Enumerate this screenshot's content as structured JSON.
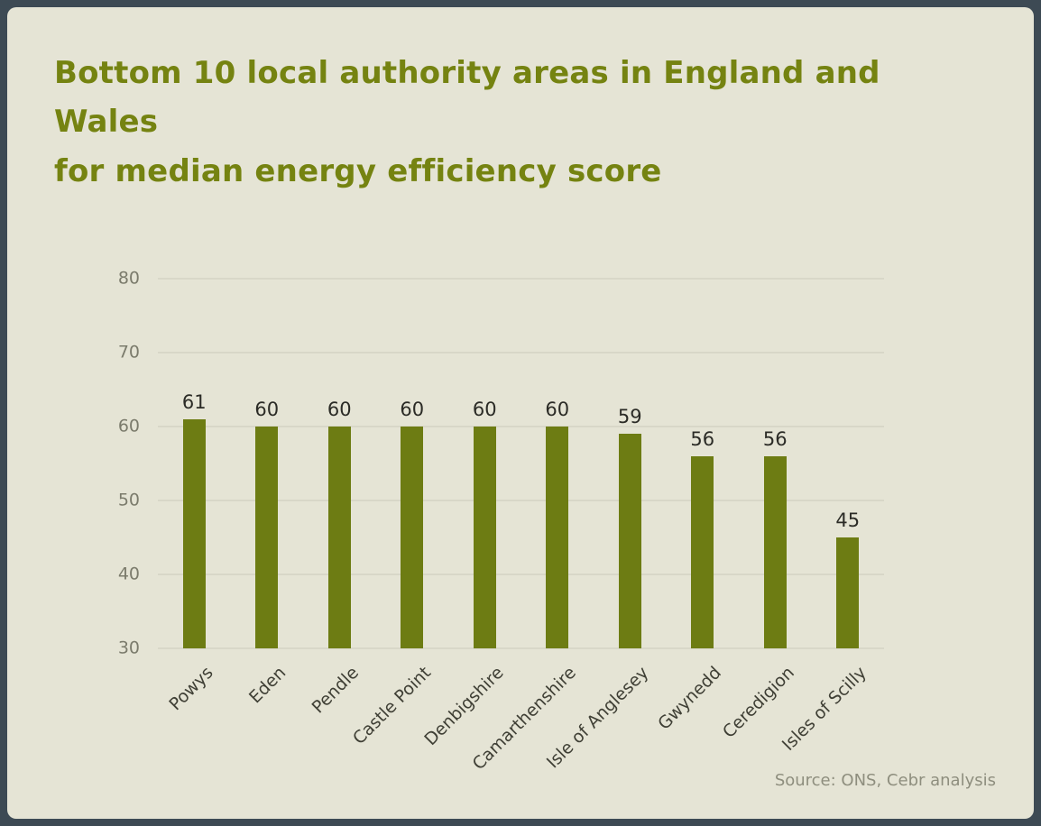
{
  "chart_data": {
    "type": "bar",
    "title": "Bottom 10 local authority areas in England and Wales for median energy efficiency score",
    "title_lines": [
      "Bottom 10 local authority areas in England and Wales",
      "for median energy efficiency score"
    ],
    "categories": [
      "Powys",
      "Eden",
      "Pendle",
      "Castle Point",
      "Denbigshire",
      "Camarthenshire",
      "Isle of Anglesey",
      "Gwynedd",
      "Ceredigion",
      "Isles of Scilly"
    ],
    "values": [
      61,
      60,
      60,
      60,
      60,
      60,
      59,
      56,
      56,
      45
    ],
    "xlabel": "",
    "ylabel": "",
    "ylim": [
      30,
      80
    ],
    "yticks": [
      30,
      40,
      50,
      60,
      70,
      80
    ],
    "grid": true,
    "legend": false,
    "bar_color": "#6d7c13",
    "title_color": "#758311",
    "background_color": "#e5e4d5",
    "frame_color": "#3d4a54",
    "source": "Source: ONS, Cebr analysis"
  }
}
